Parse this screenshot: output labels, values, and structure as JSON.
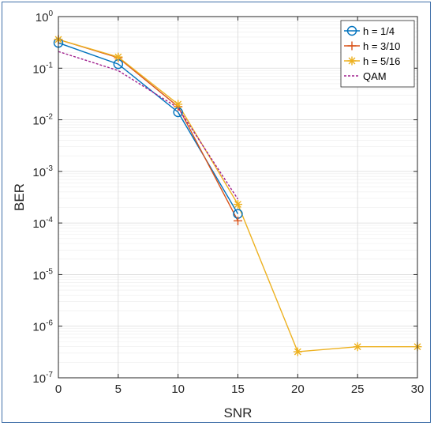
{
  "chart_data": {
    "type": "line",
    "title": "",
    "xlabel": "SNR",
    "ylabel": "BER",
    "xlim": [
      0,
      30
    ],
    "ylim": [
      1e-07,
      1
    ],
    "yscale": "log",
    "grid": true,
    "legend_position": "top-right",
    "x_ticks": [
      "0",
      "5",
      "10",
      "15",
      "20",
      "25",
      "30"
    ],
    "y_ticks": [
      {
        "base": "10",
        "exp": "-7",
        "value": 1e-07
      },
      {
        "base": "10",
        "exp": "-6",
        "value": 1e-06
      },
      {
        "base": "10",
        "exp": "-5",
        "value": 1e-05
      },
      {
        "base": "10",
        "exp": "-4",
        "value": 0.0001
      },
      {
        "base": "10",
        "exp": "-3",
        "value": 0.001
      },
      {
        "base": "10",
        "exp": "-2",
        "value": 0.01
      },
      {
        "base": "10",
        "exp": "-1",
        "value": 0.1
      },
      {
        "base": "10",
        "exp": "0",
        "value": 1
      }
    ],
    "series": [
      {
        "name": "h = 1/4",
        "color": "#0072BD",
        "marker": "circle",
        "line": "solid",
        "x": [
          0,
          5,
          10,
          15
        ],
        "y": [
          0.31,
          0.12,
          0.014,
          0.00015
        ]
      },
      {
        "name": "h = 3/10",
        "color": "#D95319",
        "marker": "plus",
        "line": "solid",
        "x": [
          0,
          5,
          10,
          15
        ],
        "y": [
          0.36,
          0.16,
          0.018,
          0.00011
        ]
      },
      {
        "name": "h = 5/16",
        "color": "#EDB120",
        "marker": "asterisk",
        "line": "solid",
        "x": [
          0,
          5,
          10,
          15,
          20,
          25,
          30
        ],
        "y": [
          0.36,
          0.165,
          0.02,
          0.00023,
          3.2e-07,
          4e-07,
          4e-07
        ]
      },
      {
        "name": "QAM",
        "color": "#A0208E",
        "marker": "none",
        "line": "dashed",
        "x": [
          0,
          5,
          10,
          15
        ],
        "y": [
          0.21,
          0.09,
          0.017,
          0.00029
        ]
      }
    ]
  }
}
